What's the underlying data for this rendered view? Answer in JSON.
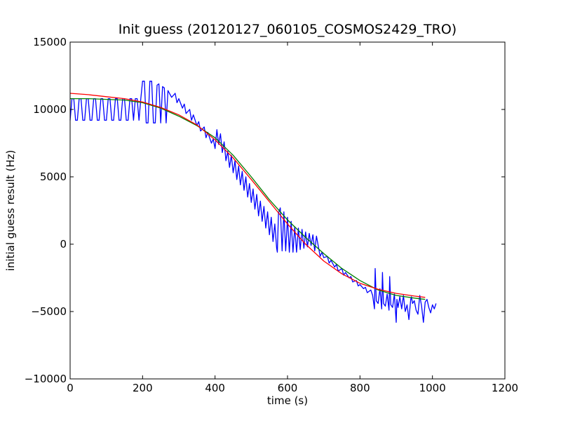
{
  "chart_data": {
    "type": "line",
    "title": "Init guess (20120127_060105_COSMOS2429_TRO)",
    "xlabel": "time (s)",
    "ylabel": "initial guess result (Hz)",
    "xlim": [
      0,
      1200
    ],
    "ylim": [
      -10000,
      15000
    ],
    "x_ticks": [
      0,
      200,
      400,
      600,
      800,
      1000,
      1200
    ],
    "x_tick_labels": [
      "0",
      "200",
      "400",
      "600",
      "800",
      "1000",
      "1200"
    ],
    "y_ticks": [
      -10000,
      -5000,
      0,
      5000,
      10000,
      15000
    ],
    "y_tick_labels": [
      "−10000",
      "−5000",
      "0",
      "5000",
      "10000",
      "15000"
    ],
    "grid": false,
    "legend": "none",
    "series": [
      {
        "color": "#0000ff",
        "x": [
          0,
          5,
          10,
          15,
          20,
          25,
          30,
          35,
          40,
          45,
          50,
          55,
          60,
          65,
          70,
          75,
          80,
          85,
          90,
          95,
          100,
          105,
          110,
          115,
          120,
          125,
          130,
          135,
          140,
          145,
          150,
          155,
          160,
          165,
          170,
          175,
          180,
          185,
          190,
          195,
          200,
          205,
          210,
          215,
          220,
          225,
          230,
          235,
          240,
          245,
          250,
          255,
          260,
          265,
          270,
          280,
          290,
          295,
          300,
          310,
          315,
          320,
          330,
          335,
          340,
          350,
          355,
          360,
          370,
          375,
          380,
          390,
          395,
          400,
          405,
          410,
          415,
          420,
          425,
          430,
          435,
          440,
          445,
          450,
          455,
          460,
          465,
          470,
          475,
          480,
          485,
          490,
          495,
          500,
          505,
          510,
          515,
          520,
          525,
          530,
          535,
          540,
          545,
          550,
          555,
          560,
          565,
          570,
          572,
          575,
          580,
          585,
          590,
          595,
          600,
          605,
          610,
          615,
          620,
          625,
          630,
          635,
          640,
          645,
          650,
          655,
          660,
          665,
          670,
          675,
          680,
          690,
          695,
          700,
          710,
          715,
          720,
          730,
          735,
          740,
          750,
          755,
          760,
          770,
          775,
          780,
          790,
          795,
          800,
          810,
          815,
          820,
          830,
          835,
          840,
          842,
          845,
          850,
          855,
          860,
          862,
          865,
          870,
          875,
          880,
          882,
          885,
          890,
          895,
          900,
          902,
          905,
          910,
          915,
          920,
          925,
          930,
          935,
          940,
          942,
          945,
          950,
          955,
          960,
          965,
          970,
          975,
          980,
          985,
          990,
          995,
          1000,
          1005,
          1010
        ],
        "y": [
          9200,
          10800,
          10800,
          9200,
          9200,
          10800,
          10800,
          9200,
          9200,
          10800,
          10800,
          9200,
          9200,
          10800,
          10800,
          9200,
          9200,
          10800,
          10800,
          9200,
          9200,
          10800,
          10800,
          9200,
          9200,
          10800,
          10800,
          9200,
          9200,
          10800,
          10800,
          9200,
          9200,
          10800,
          10800,
          9200,
          10800,
          10800,
          9200,
          10800,
          12100,
          12100,
          9000,
          9000,
          12100,
          12100,
          9000,
          9000,
          11800,
          11900,
          9000,
          11700,
          11600,
          9000,
          11400,
          10900,
          11200,
          10500,
          10800,
          10100,
          10400,
          9700,
          10000,
          9200,
          9600,
          8800,
          9100,
          8400,
          8700,
          7900,
          8300,
          7500,
          7800,
          7100,
          8500,
          7400,
          8200,
          6800,
          7600,
          6200,
          6900,
          5700,
          6600,
          5300,
          6200,
          4800,
          5800,
          4400,
          5400,
          4000,
          5000,
          3500,
          4500,
          3100,
          4100,
          2600,
          3700,
          2100,
          3200,
          1700,
          2800,
          1200,
          2400,
          700,
          2000,
          200,
          1500,
          -300,
          -600,
          2300,
          2700,
          -500,
          2400,
          -500,
          2000,
          -600,
          1700,
          -600,
          1300,
          -600,
          1200,
          -400,
          1100,
          -300,
          900,
          -200,
          800,
          -100,
          700,
          -500,
          600,
          -900,
          -600,
          -1000,
          -900,
          -1400,
          -1200,
          -1700,
          -1500,
          -2000,
          -1800,
          -2300,
          -2100,
          -2500,
          -2400,
          -2800,
          -2700,
          -3100,
          -3000,
          -3300,
          -3200,
          -3600,
          -3400,
          -3800,
          -4800,
          -1800,
          -4200,
          -4400,
          -3300,
          -4800,
          -2100,
          -4400,
          -4600,
          -3700,
          -4900,
          -2400,
          -4500,
          -4700,
          -3700,
          -5800,
          -4100,
          -4700,
          -3900,
          -4800,
          -3800,
          -5000,
          -4500,
          -5600,
          -4100,
          -3900,
          -4400,
          -4200,
          -4900,
          -5200,
          -3800,
          -4600,
          -5800,
          -4300,
          -4100,
          -4700,
          -5100,
          -4500,
          -4800,
          -4400
        ]
      },
      {
        "color": "#008000",
        "x": [
          0,
          50,
          100,
          150,
          200,
          250,
          300,
          350,
          400,
          450,
          500,
          550,
          600,
          650,
          700,
          750,
          800,
          850,
          900,
          950,
          980
        ],
        "y": [
          10800,
          10800,
          10750,
          10700,
          10500,
          10100,
          9500,
          8800,
          7900,
          6600,
          5000,
          3300,
          1800,
          500,
          -700,
          -1800,
          -2700,
          -3400,
          -3800,
          -4000,
          -4100
        ]
      },
      {
        "color": "#ff0000",
        "x": [
          0,
          50,
          100,
          150,
          200,
          250,
          300,
          350,
          400,
          450,
          500,
          550,
          600,
          650,
          700,
          750,
          800,
          850,
          900,
          950,
          980
        ],
        "y": [
          11200,
          11100,
          10950,
          10800,
          10550,
          10150,
          9600,
          8850,
          7750,
          6400,
          4800,
          3150,
          1500,
          0,
          -1250,
          -2200,
          -2900,
          -3350,
          -3650,
          -3850,
          -3950
        ]
      }
    ]
  }
}
